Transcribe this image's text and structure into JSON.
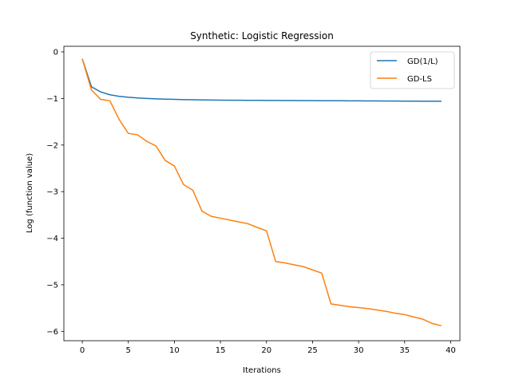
{
  "chart_data": {
    "type": "line",
    "title": "Synthetic: Logistic Regression",
    "xlabel": "Iterations",
    "ylabel": "Log (function value)",
    "xlim": [
      -2,
      41
    ],
    "ylim": [
      -6.2,
      0.12
    ],
    "xticks": [
      0,
      5,
      10,
      15,
      20,
      25,
      30,
      35,
      40
    ],
    "yticks": [
      0,
      -1,
      -2,
      -3,
      -4,
      -5,
      -6
    ],
    "legend_position": "top-right",
    "grid": false,
    "series": [
      {
        "name": "GD(1/L)",
        "color": "#1f77b4",
        "x": [
          0,
          1,
          2,
          3,
          4,
          5,
          6,
          7,
          8,
          9,
          10,
          11,
          12,
          13,
          14,
          15,
          16,
          17,
          18,
          19,
          20,
          21,
          22,
          23,
          24,
          25,
          26,
          27,
          28,
          29,
          30,
          31,
          32,
          33,
          34,
          35,
          36,
          37,
          38,
          39
        ],
        "values": [
          -0.15,
          -0.75,
          -0.86,
          -0.92,
          -0.955,
          -0.975,
          -0.99,
          -1.0,
          -1.008,
          -1.015,
          -1.02,
          -1.025,
          -1.028,
          -1.031,
          -1.034,
          -1.036,
          -1.038,
          -1.039,
          -1.04,
          -1.041,
          -1.042,
          -1.043,
          -1.044,
          -1.045,
          -1.046,
          -1.047,
          -1.048,
          -1.049,
          -1.05,
          -1.051,
          -1.052,
          -1.053,
          -1.054,
          -1.055,
          -1.056,
          -1.057,
          -1.058,
          -1.059,
          -1.06,
          -1.06
        ]
      },
      {
        "name": "GD-LS",
        "color": "#ff7f0e",
        "x": [
          0,
          1,
          2,
          3,
          4,
          5,
          6,
          7,
          8,
          9,
          10,
          11,
          12,
          13,
          14,
          15,
          16,
          17,
          18,
          19,
          20,
          21,
          22,
          23,
          24,
          25,
          26,
          27,
          28,
          29,
          30,
          31,
          32,
          33,
          34,
          35,
          36,
          37,
          38,
          39
        ],
        "values": [
          -0.15,
          -0.82,
          -1.02,
          -1.05,
          -1.45,
          -1.75,
          -1.78,
          -1.92,
          -2.02,
          -2.33,
          -2.45,
          -2.85,
          -2.97,
          -3.42,
          -3.53,
          -3.57,
          -3.61,
          -3.65,
          -3.69,
          -3.77,
          -3.84,
          -4.5,
          -4.53,
          -4.57,
          -4.61,
          -4.68,
          -4.75,
          -5.41,
          -5.44,
          -5.47,
          -5.49,
          -5.51,
          -5.54,
          -5.57,
          -5.61,
          -5.64,
          -5.69,
          -5.74,
          -5.83,
          -5.88
        ]
      }
    ]
  }
}
